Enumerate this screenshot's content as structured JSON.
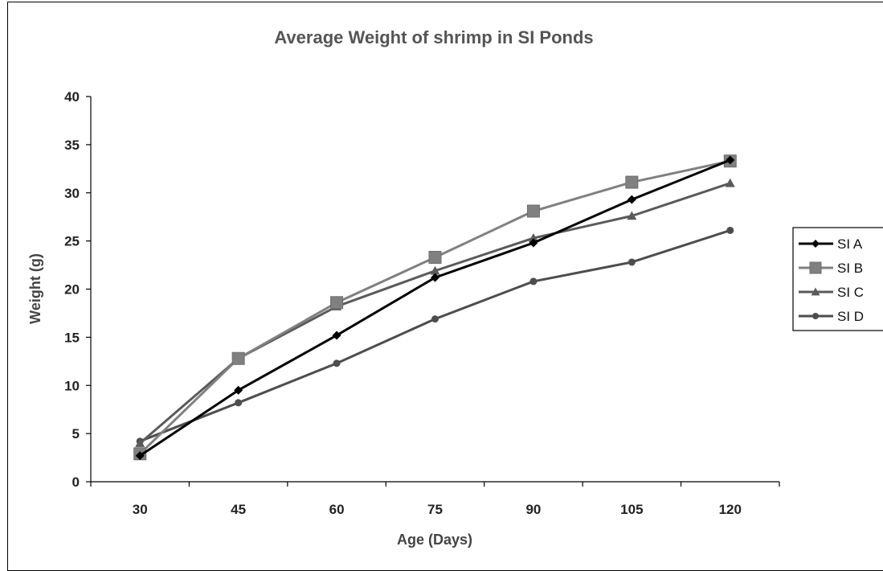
{
  "chart_data": {
    "type": "line",
    "title": "Average Weight of shrimp in SI Ponds",
    "xlabel": "Age (Days)",
    "ylabel": "Weight (g)",
    "x": [
      30,
      45,
      60,
      75,
      90,
      105,
      120
    ],
    "ylim": [
      0,
      40
    ],
    "yticks": [
      0,
      5,
      10,
      15,
      20,
      25,
      30,
      35,
      40
    ],
    "grid": false,
    "legend_position": "right",
    "series": [
      {
        "name": "SI A",
        "marker": "diamond",
        "color": "#000000",
        "values": [
          2.7,
          9.5,
          15.2,
          21.2,
          24.8,
          29.3,
          33.4
        ]
      },
      {
        "name": "SI B",
        "marker": "square",
        "color": "#808080",
        "values": [
          2.9,
          12.8,
          18.6,
          23.3,
          28.1,
          31.1,
          33.3
        ]
      },
      {
        "name": "SI C",
        "marker": "triangle",
        "color": "#5a5a5a",
        "values": [
          4.0,
          12.8,
          18.2,
          21.9,
          25.3,
          27.6,
          31.0
        ]
      },
      {
        "name": "SI D",
        "marker": "circle",
        "color": "#4d4d4d",
        "values": [
          4.2,
          8.2,
          12.3,
          16.9,
          20.8,
          22.8,
          26.1
        ]
      }
    ]
  }
}
